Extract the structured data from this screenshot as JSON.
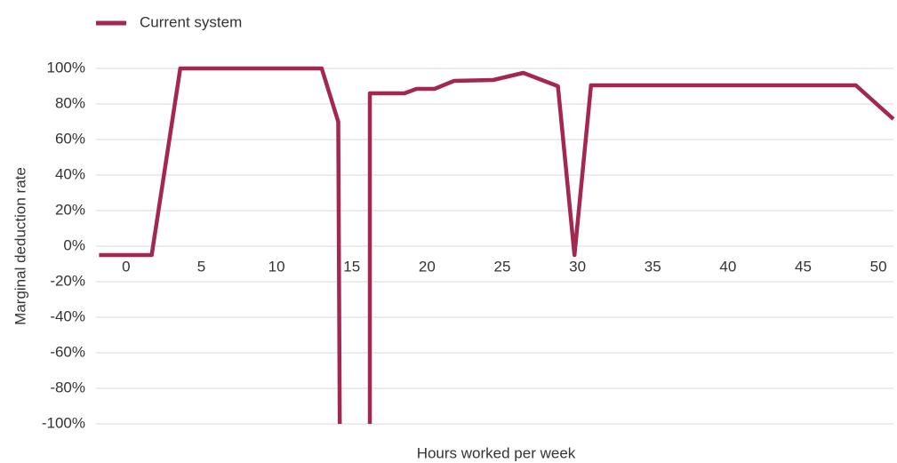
{
  "chart_data": {
    "type": "line",
    "x_label": "Hours worked per week",
    "y_label": "Marginal deduction rate",
    "legend": "top-left",
    "grid": true,
    "xlim": [
      -2,
      51
    ],
    "ylim": [
      -100,
      100
    ],
    "xticks": [
      0,
      5,
      10,
      15,
      20,
      25,
      30,
      35,
      40,
      45,
      50
    ],
    "yticks": [
      {
        "value": 100,
        "label": "100%"
      },
      {
        "value": 80,
        "label": "80%"
      },
      {
        "value": 60,
        "label": "60%"
      },
      {
        "value": 40,
        "label": "40%"
      },
      {
        "value": 20,
        "label": "20%"
      },
      {
        "value": 0,
        "label": "0%"
      },
      {
        "value": -20,
        "label": "-20%"
      },
      {
        "value": -40,
        "label": "-40%"
      },
      {
        "value": -60,
        "label": "-60%"
      },
      {
        "value": -80,
        "label": "-80%"
      },
      {
        "value": -100,
        "label": "-100%"
      }
    ],
    "series": [
      {
        "name": "Current system",
        "color": "#a3284f",
        "x": [
          -1.8,
          1.7,
          3.6,
          13.0,
          14.1,
          14.2,
          null,
          16.2,
          16.2,
          18.5,
          19.3,
          20.5,
          21.8,
          24.4,
          26.4,
          28.7,
          29.8,
          30.9,
          48.5,
          51.0
        ],
        "values": [
          -5,
          -5,
          100,
          100,
          70,
          -100,
          null,
          -100,
          86,
          86,
          88.5,
          88.5,
          93,
          93.5,
          97.5,
          90,
          -5,
          90.5,
          90.5,
          71.5
        ]
      }
    ]
  }
}
